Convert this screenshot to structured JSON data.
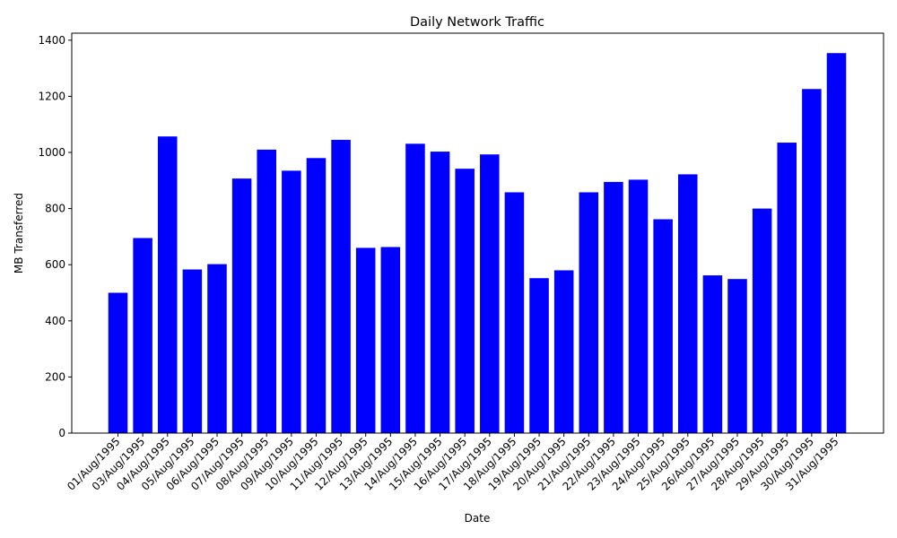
{
  "chart_data": {
    "type": "bar",
    "title": "Daily Network Traffic",
    "xlabel": "Date",
    "ylabel": "MB Transferred",
    "ylim": [
      0,
      1425
    ],
    "yticks": [
      0,
      200,
      400,
      600,
      800,
      1000,
      1200,
      1400
    ],
    "bar_color": "#0000ff",
    "grid": false,
    "categories": [
      "01/Aug/1995",
      "03/Aug/1995",
      "04/Aug/1995",
      "05/Aug/1995",
      "06/Aug/1995",
      "07/Aug/1995",
      "08/Aug/1995",
      "09/Aug/1995",
      "10/Aug/1995",
      "11/Aug/1995",
      "12/Aug/1995",
      "13/Aug/1995",
      "14/Aug/1995",
      "15/Aug/1995",
      "16/Aug/1995",
      "17/Aug/1995",
      "18/Aug/1995",
      "19/Aug/1995",
      "20/Aug/1995",
      "21/Aug/1995",
      "22/Aug/1995",
      "23/Aug/1995",
      "24/Aug/1995",
      "25/Aug/1995",
      "26/Aug/1995",
      "27/Aug/1995",
      "28/Aug/1995",
      "29/Aug/1995",
      "30/Aug/1995",
      "31/Aug/1995"
    ],
    "values": [
      500,
      695,
      1057,
      583,
      602,
      907,
      1010,
      935,
      980,
      1045,
      660,
      663,
      1031,
      1003,
      942,
      993,
      858,
      552,
      580,
      858,
      895,
      903,
      762,
      922,
      562,
      549,
      800,
      1035,
      1226,
      1354
    ]
  }
}
